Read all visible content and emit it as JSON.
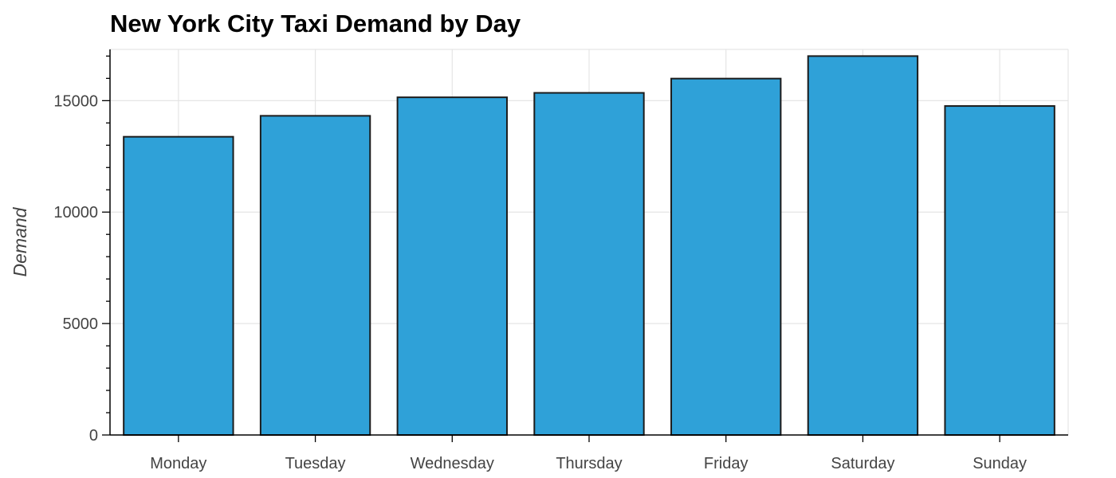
{
  "chart_data": {
    "type": "bar",
    "title": "New York City Taxi Demand by Day",
    "xlabel": "",
    "ylabel": "Demand",
    "categories": [
      "Monday",
      "Tuesday",
      "Wednesday",
      "Thursday",
      "Friday",
      "Saturday",
      "Sunday"
    ],
    "values": [
      13380,
      14320,
      15150,
      15350,
      15990,
      17000,
      14760
    ],
    "ylim": [
      0,
      17300
    ],
    "yticks": [
      0,
      5000,
      10000,
      15000
    ],
    "ytick_labels": [
      "0",
      "5000",
      "10000",
      "15000"
    ],
    "grid": true,
    "legend": "none",
    "colors": {
      "bar_fill": "#2fa1d8",
      "bar_stroke": "#1c1c1c",
      "grid": "#e5e5e5",
      "axis": "#000000",
      "tick_label": "#444444"
    }
  }
}
